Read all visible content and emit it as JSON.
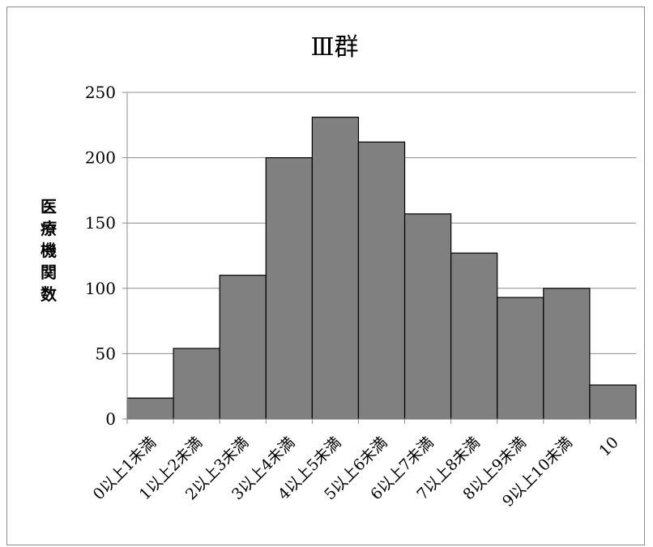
{
  "chart_data": {
    "type": "bar",
    "title": "Ⅲ群",
    "ylabel": "医療機関数",
    "xlabel": "",
    "categories": [
      "0以上1未満",
      "1以上2未満",
      "2以上3未満",
      "3以上4未満",
      "4以上5未満",
      "5以上6未満",
      "6以上7未満",
      "7以上8未満",
      "8以上9未満",
      "9以上10未満",
      "10"
    ],
    "values": [
      16,
      54,
      110,
      200,
      231,
      212,
      157,
      127,
      93,
      100,
      26
    ],
    "ylim": [
      0,
      250
    ],
    "yticks": [
      0,
      50,
      100,
      150,
      200,
      250
    ],
    "grid": true,
    "bar_color": "#808080",
    "legend": "none"
  }
}
